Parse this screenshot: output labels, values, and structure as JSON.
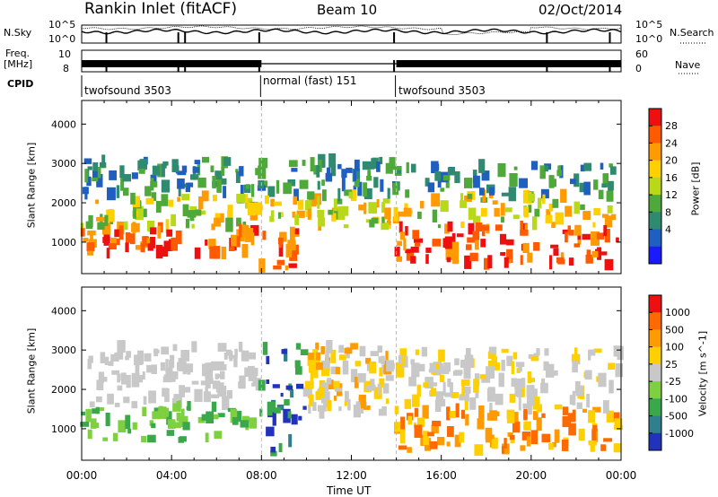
{
  "header": {
    "title_left": "Rankin Inlet (fitACF)",
    "title_center": "Beam 10",
    "title_right": "02/Oct/2014"
  },
  "top_panels": {
    "nsky_label": "N.Sky",
    "nsky_ticks": [
      "10^5",
      "10^0"
    ],
    "nsearch_label": "N.Search",
    "nsearch_ticks": [
      "10^5",
      "10^0"
    ],
    "freq_label_1": "Freq.",
    "freq_label_2": "[MHz]",
    "freq_ticks": [
      "10",
      "8"
    ],
    "nave_label": "Nave",
    "nave_ticks": [
      "60",
      "0"
    ],
    "cpid_label": "CPID"
  },
  "cpid_segments": [
    {
      "label": "twofsound 3503",
      "start_h": 0,
      "end_h": 8
    },
    {
      "label": "normal (fast) 151",
      "start_h": 8,
      "end_h": 14
    },
    {
      "label": "twofsound 3503",
      "start_h": 14,
      "end_h": 24
    }
  ],
  "chart_data": [
    {
      "type": "heatmap",
      "title": "",
      "xlabel": "Time UT",
      "ylabel": "Slant Range [km]",
      "xlim": [
        0,
        24
      ],
      "ylim": [
        200,
        4600
      ],
      "x_ticks": [
        "00:00",
        "04:00",
        "08:00",
        "12:00",
        "16:00",
        "20:00",
        "00:00"
      ],
      "y_ticks": [
        1000,
        2000,
        3000,
        4000
      ],
      "colorbar": {
        "label": "Power [dB]",
        "ticks": [
          4,
          8,
          12,
          16,
          20,
          24,
          28
        ],
        "colors": [
          "#1a1aff",
          "#1f5fbf",
          "#2f8a70",
          "#4fa83a",
          "#b8d818",
          "#ffd000",
          "#ff9a00",
          "#ff5a00",
          "#ee1010"
        ]
      }
    },
    {
      "type": "heatmap",
      "title": "",
      "xlabel": "Time UT",
      "ylabel": "Slant Range [km]",
      "xlim": [
        0,
        24
      ],
      "ylim": [
        200,
        4600
      ],
      "x_ticks": [
        "00:00",
        "04:00",
        "08:00",
        "12:00",
        "16:00",
        "20:00",
        "00:00"
      ],
      "y_ticks": [
        1000,
        2000,
        3000,
        4000
      ],
      "colorbar": {
        "label": "Velocity [m s^-1]",
        "ticks": [
          1000,
          500,
          100,
          25,
          -25,
          -100,
          -500,
          -1000
        ],
        "colors": [
          "#2233bb",
          "#2f7f8f",
          "#3aa84a",
          "#7fd040",
          "#c8c8c8",
          "#ffd000",
          "#ff9a00",
          "#ff6a00",
          "#ee1010"
        ]
      }
    }
  ],
  "axis": {
    "x_title": "Time UT"
  }
}
